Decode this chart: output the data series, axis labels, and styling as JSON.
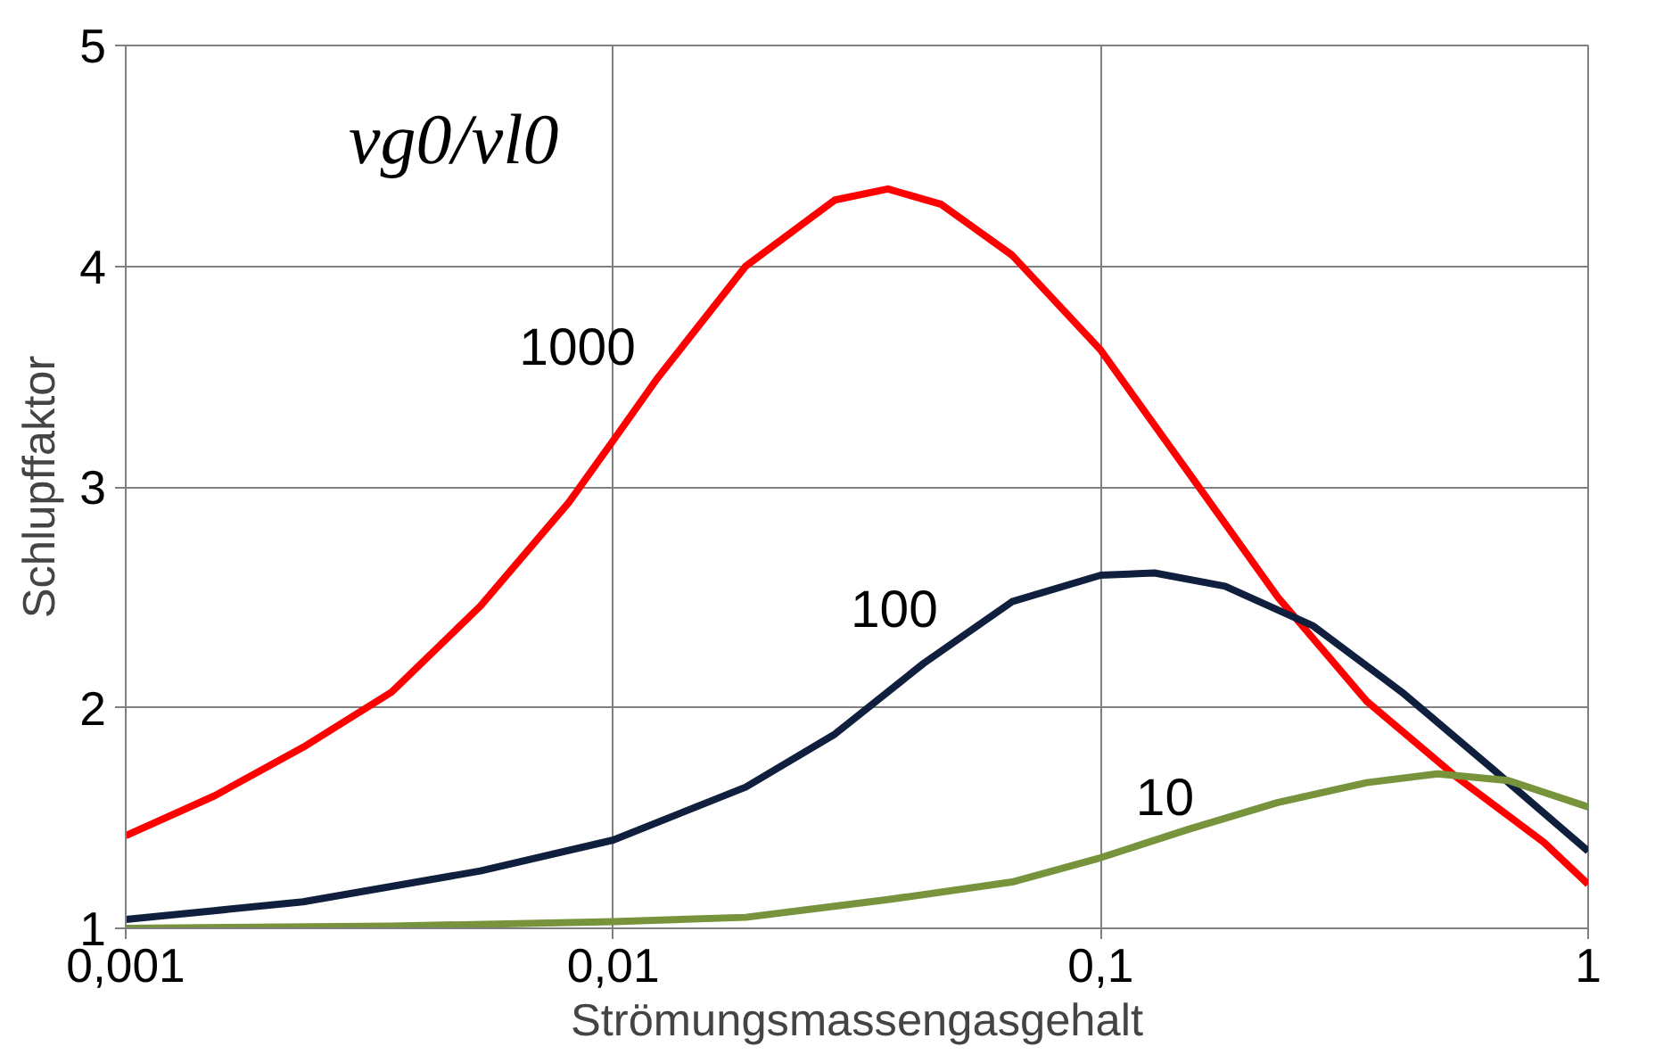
{
  "chart_data": {
    "type": "line",
    "xlabel": "Strömungsmassengasgehalt",
    "ylabel": "Schlupffaktor",
    "log": "x",
    "xlim": [
      0.001,
      1
    ],
    "xticks": [
      {
        "value": 0.001,
        "label": "0,001"
      },
      {
        "value": 0.01,
        "label": "0,01"
      },
      {
        "value": 0.1,
        "label": "0,1"
      },
      1
    ],
    "ylim": [
      1,
      5
    ],
    "yticks": [
      1,
      2,
      3,
      4,
      5
    ],
    "grid": true,
    "line_style": "solid",
    "marker": "none",
    "series": [
      {
        "color": "#ff0000",
        "x": [
          0.001,
          0.00152,
          0.00231,
          0.00351,
          0.00534,
          0.00811,
          0.01,
          0.0123,
          0.0187,
          0.0285,
          0.0366,
          0.0471,
          0.0658,
          0.1,
          0.152,
          0.231,
          0.351,
          0.534,
          0.811,
          1
        ],
        "values": [
          1.42,
          1.6,
          1.82,
          2.07,
          2.46,
          2.93,
          3.21,
          3.49,
          4.0,
          4.3,
          4.35,
          4.28,
          4.05,
          3.62,
          3.06,
          2.5,
          2.03,
          1.69,
          1.39,
          1.2
        ]
      },
      {
        "color": "#0f1f3d",
        "x": [
          0.001,
          0.00231,
          0.00534,
          0.01,
          0.0187,
          0.0285,
          0.0433,
          0.0658,
          0.1,
          0.129,
          0.18,
          0.273,
          0.415,
          0.631,
          1
        ],
        "values": [
          1.04,
          1.12,
          1.26,
          1.4,
          1.64,
          1.88,
          2.2,
          2.48,
          2.6,
          2.61,
          2.55,
          2.37,
          2.07,
          1.73,
          1.35
        ]
      },
      {
        "color": "#77933c",
        "x": [
          0.001,
          0.00351,
          0.01,
          0.0187,
          0.0366,
          0.0658,
          0.1,
          0.152,
          0.231,
          0.351,
          0.491,
          0.686,
          1
        ],
        "values": [
          1.0,
          1.01,
          1.03,
          1.05,
          1.13,
          1.21,
          1.32,
          1.45,
          1.57,
          1.66,
          1.7,
          1.67,
          1.55
        ]
      }
    ],
    "annotations": [
      "vg0/vl0",
      {
        "text": "1000",
        "x": 0.0123,
        "y": 3.49
      },
      {
        "text": "100",
        "x": 0.0513,
        "y": 2.3
      },
      {
        "text": "10",
        "x": 0.172,
        "y": 1.45
      }
    ]
  }
}
